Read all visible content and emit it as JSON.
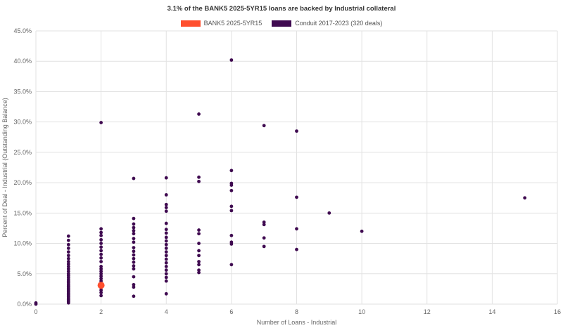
{
  "chart_data": {
    "type": "scatter",
    "title": "3.1% of the BANK5 2025-5YR15 loans are backed by Industrial collateral",
    "xlabel": "Number of Loans - Industrial",
    "ylabel": "Percent of Deal - Industrial (Outstanding Balance)",
    "xlim": [
      0,
      16
    ],
    "ylim": [
      0,
      45
    ],
    "x_ticks": [
      "0",
      "2",
      "4",
      "6",
      "8",
      "10",
      "12",
      "14",
      "16"
    ],
    "y_ticks": [
      "0.0%",
      "5.0%",
      "10.0%",
      "15.0%",
      "20.0%",
      "25.0%",
      "30.0%",
      "35.0%",
      "40.0%",
      "45.0%"
    ],
    "grid": true,
    "legend_position": "top-center",
    "series": [
      {
        "name": "BANK5 2025-5YR15",
        "color": "#ff4f2e",
        "marker": "large",
        "points": [
          [
            2,
            3.1
          ]
        ]
      },
      {
        "name": "Conduit 2017-2023 (320 deals)",
        "color": "#3f0a50",
        "marker": "small",
        "points": [
          [
            0,
            0.0
          ],
          [
            0,
            0.2
          ],
          [
            1,
            0.2
          ],
          [
            1,
            0.4
          ],
          [
            1,
            0.6
          ],
          [
            1,
            0.8
          ],
          [
            1,
            1.0
          ],
          [
            1,
            1.2
          ],
          [
            1,
            1.4
          ],
          [
            1,
            1.6
          ],
          [
            1,
            1.8
          ],
          [
            1,
            2.0
          ],
          [
            1,
            2.2
          ],
          [
            1,
            2.4
          ],
          [
            1,
            2.6
          ],
          [
            1,
            2.8
          ],
          [
            1,
            3.0
          ],
          [
            1,
            3.2
          ],
          [
            1,
            3.5
          ],
          [
            1,
            3.8
          ],
          [
            1,
            4.1
          ],
          [
            1,
            4.4
          ],
          [
            1,
            4.7
          ],
          [
            1,
            5.0
          ],
          [
            1,
            5.4
          ],
          [
            1,
            5.8
          ],
          [
            1,
            6.2
          ],
          [
            1,
            6.6
          ],
          [
            1,
            7.0
          ],
          [
            1,
            7.5
          ],
          [
            1,
            8.0
          ],
          [
            1,
            8.6
          ],
          [
            1,
            9.2
          ],
          [
            1,
            9.8
          ],
          [
            1,
            10.5
          ],
          [
            1,
            11.2
          ],
          [
            2,
            1.4
          ],
          [
            2,
            1.9
          ],
          [
            2,
            2.3
          ],
          [
            2,
            2.7
          ],
          [
            2,
            3.4
          ],
          [
            2,
            3.8
          ],
          [
            2,
            4.2
          ],
          [
            2,
            4.6
          ],
          [
            2,
            5.0
          ],
          [
            2,
            5.4
          ],
          [
            2,
            5.8
          ],
          [
            2,
            6.2
          ],
          [
            2,
            7.0
          ],
          [
            2,
            7.6
          ],
          [
            2,
            8.2
          ],
          [
            2,
            8.8
          ],
          [
            2,
            9.4
          ],
          [
            2,
            10.0
          ],
          [
            2,
            10.6
          ],
          [
            2,
            11.3
          ],
          [
            2,
            11.8
          ],
          [
            2,
            12.4
          ],
          [
            2,
            29.9
          ],
          [
            3,
            1.3
          ],
          [
            3,
            2.8
          ],
          [
            3,
            3.2
          ],
          [
            3,
            4.5
          ],
          [
            3,
            5.8
          ],
          [
            3,
            6.3
          ],
          [
            3,
            6.9
          ],
          [
            3,
            7.5
          ],
          [
            3,
            8.1
          ],
          [
            3,
            8.7
          ],
          [
            3,
            9.3
          ],
          [
            3,
            10.2
          ],
          [
            3,
            10.8
          ],
          [
            3,
            11.6
          ],
          [
            3,
            12.1
          ],
          [
            3,
            12.6
          ],
          [
            3,
            13.2
          ],
          [
            3,
            14.1
          ],
          [
            3,
            20.7
          ],
          [
            4,
            1.7
          ],
          [
            4,
            3.8
          ],
          [
            4,
            4.4
          ],
          [
            4,
            5.0
          ],
          [
            4,
            5.6
          ],
          [
            4,
            6.2
          ],
          [
            4,
            6.8
          ],
          [
            4,
            7.4
          ],
          [
            4,
            8.0
          ],
          [
            4,
            8.6
          ],
          [
            4,
            9.2
          ],
          [
            4,
            9.8
          ],
          [
            4,
            10.4
          ],
          [
            4,
            11.0
          ],
          [
            4,
            11.7
          ],
          [
            4,
            12.3
          ],
          [
            4,
            13.3
          ],
          [
            4,
            15.3
          ],
          [
            4,
            15.9
          ],
          [
            4,
            16.4
          ],
          [
            4,
            18.0
          ],
          [
            4,
            20.8
          ],
          [
            5,
            5.2
          ],
          [
            5,
            5.6
          ],
          [
            5,
            6.5
          ],
          [
            5,
            7.0
          ],
          [
            5,
            8.0
          ],
          [
            5,
            8.8
          ],
          [
            5,
            10.0
          ],
          [
            5,
            11.6
          ],
          [
            5,
            12.2
          ],
          [
            5,
            20.2
          ],
          [
            5,
            20.9
          ],
          [
            5,
            31.3
          ],
          [
            6,
            6.5
          ],
          [
            6,
            9.9
          ],
          [
            6,
            10.2
          ],
          [
            6,
            11.3
          ],
          [
            6,
            15.4
          ],
          [
            6,
            16.1
          ],
          [
            6,
            18.7
          ],
          [
            6,
            19.6
          ],
          [
            6,
            19.9
          ],
          [
            6,
            22.0
          ],
          [
            6,
            40.2
          ],
          [
            7,
            9.5
          ],
          [
            7,
            10.9
          ],
          [
            7,
            13.1
          ],
          [
            7,
            13.5
          ],
          [
            7,
            29.4
          ],
          [
            8,
            9.0
          ],
          [
            8,
            12.4
          ],
          [
            8,
            17.6
          ],
          [
            8,
            28.5
          ],
          [
            9,
            15.0
          ],
          [
            10,
            12.0
          ],
          [
            15,
            17.5
          ]
        ]
      }
    ]
  }
}
